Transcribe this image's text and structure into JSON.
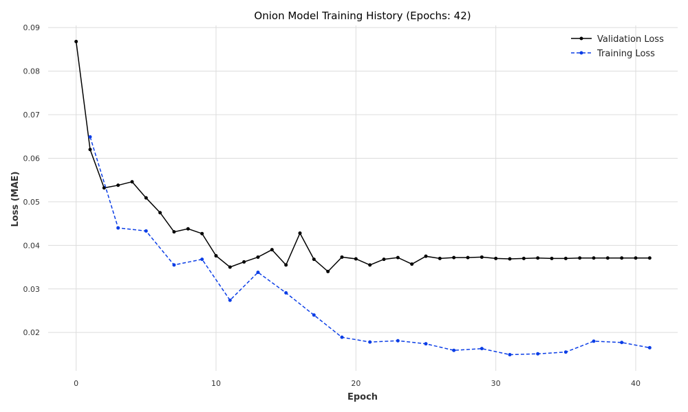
{
  "chart_data": {
    "type": "line",
    "title": "Onion Model Training History (Epochs: 42)",
    "xlabel": "Epoch",
    "ylabel": "Loss (MAE)",
    "xlim": [
      -2,
      43
    ],
    "ylim": [
      0.0112,
      0.0905
    ],
    "xticks": [
      0,
      10,
      20,
      30,
      40
    ],
    "yticks": [
      0.02,
      0.03,
      0.04,
      0.05,
      0.06,
      0.07,
      0.08,
      0.09
    ],
    "ytick_labels": [
      "0.02",
      "0.03",
      "0.04",
      "0.05",
      "0.06",
      "0.07",
      "0.08",
      "0.09"
    ],
    "grid": true,
    "legend": "top-right",
    "series": [
      {
        "name": "Validation Loss",
        "color": "#000000",
        "style": "solid",
        "x": [
          0,
          1,
          2,
          3,
          4,
          5,
          6,
          7,
          8,
          9,
          10,
          11,
          12,
          13,
          14,
          15,
          16,
          17,
          18,
          19,
          20,
          21,
          22,
          23,
          24,
          25,
          26,
          27,
          28,
          29,
          30,
          31,
          32,
          33,
          34,
          35,
          36,
          37,
          38,
          39,
          40,
          41
        ],
        "y": [
          0.0868,
          0.062,
          0.0532,
          0.0538,
          0.0546,
          0.0509,
          0.0475,
          0.0431,
          0.0438,
          0.0427,
          0.0376,
          0.035,
          0.0362,
          0.0373,
          0.039,
          0.0355,
          0.0428,
          0.0368,
          0.034,
          0.0373,
          0.0369,
          0.0355,
          0.0368,
          0.0372,
          0.0357,
          0.0375,
          0.037,
          0.0372,
          0.0372,
          0.0373,
          0.037,
          0.0369,
          0.037,
          0.0371,
          0.037,
          0.037,
          0.0371,
          0.0371,
          0.0371,
          0.0371,
          0.0371,
          0.0371
        ]
      },
      {
        "name": "Training Loss",
        "color": "#0a3de6",
        "style": "dashed",
        "x": [
          1,
          3,
          5,
          7,
          9,
          11,
          13,
          15,
          17,
          19,
          21,
          23,
          25,
          27,
          29,
          31,
          33,
          35,
          37,
          39,
          41
        ],
        "y": [
          0.0649,
          0.044,
          0.0433,
          0.0355,
          0.0368,
          0.0274,
          0.0338,
          0.0291,
          0.024,
          0.0189,
          0.0178,
          0.0181,
          0.0174,
          0.0159,
          0.0163,
          0.0149,
          0.0151,
          0.0155,
          0.018,
          0.0177,
          0.0165
        ]
      }
    ]
  }
}
